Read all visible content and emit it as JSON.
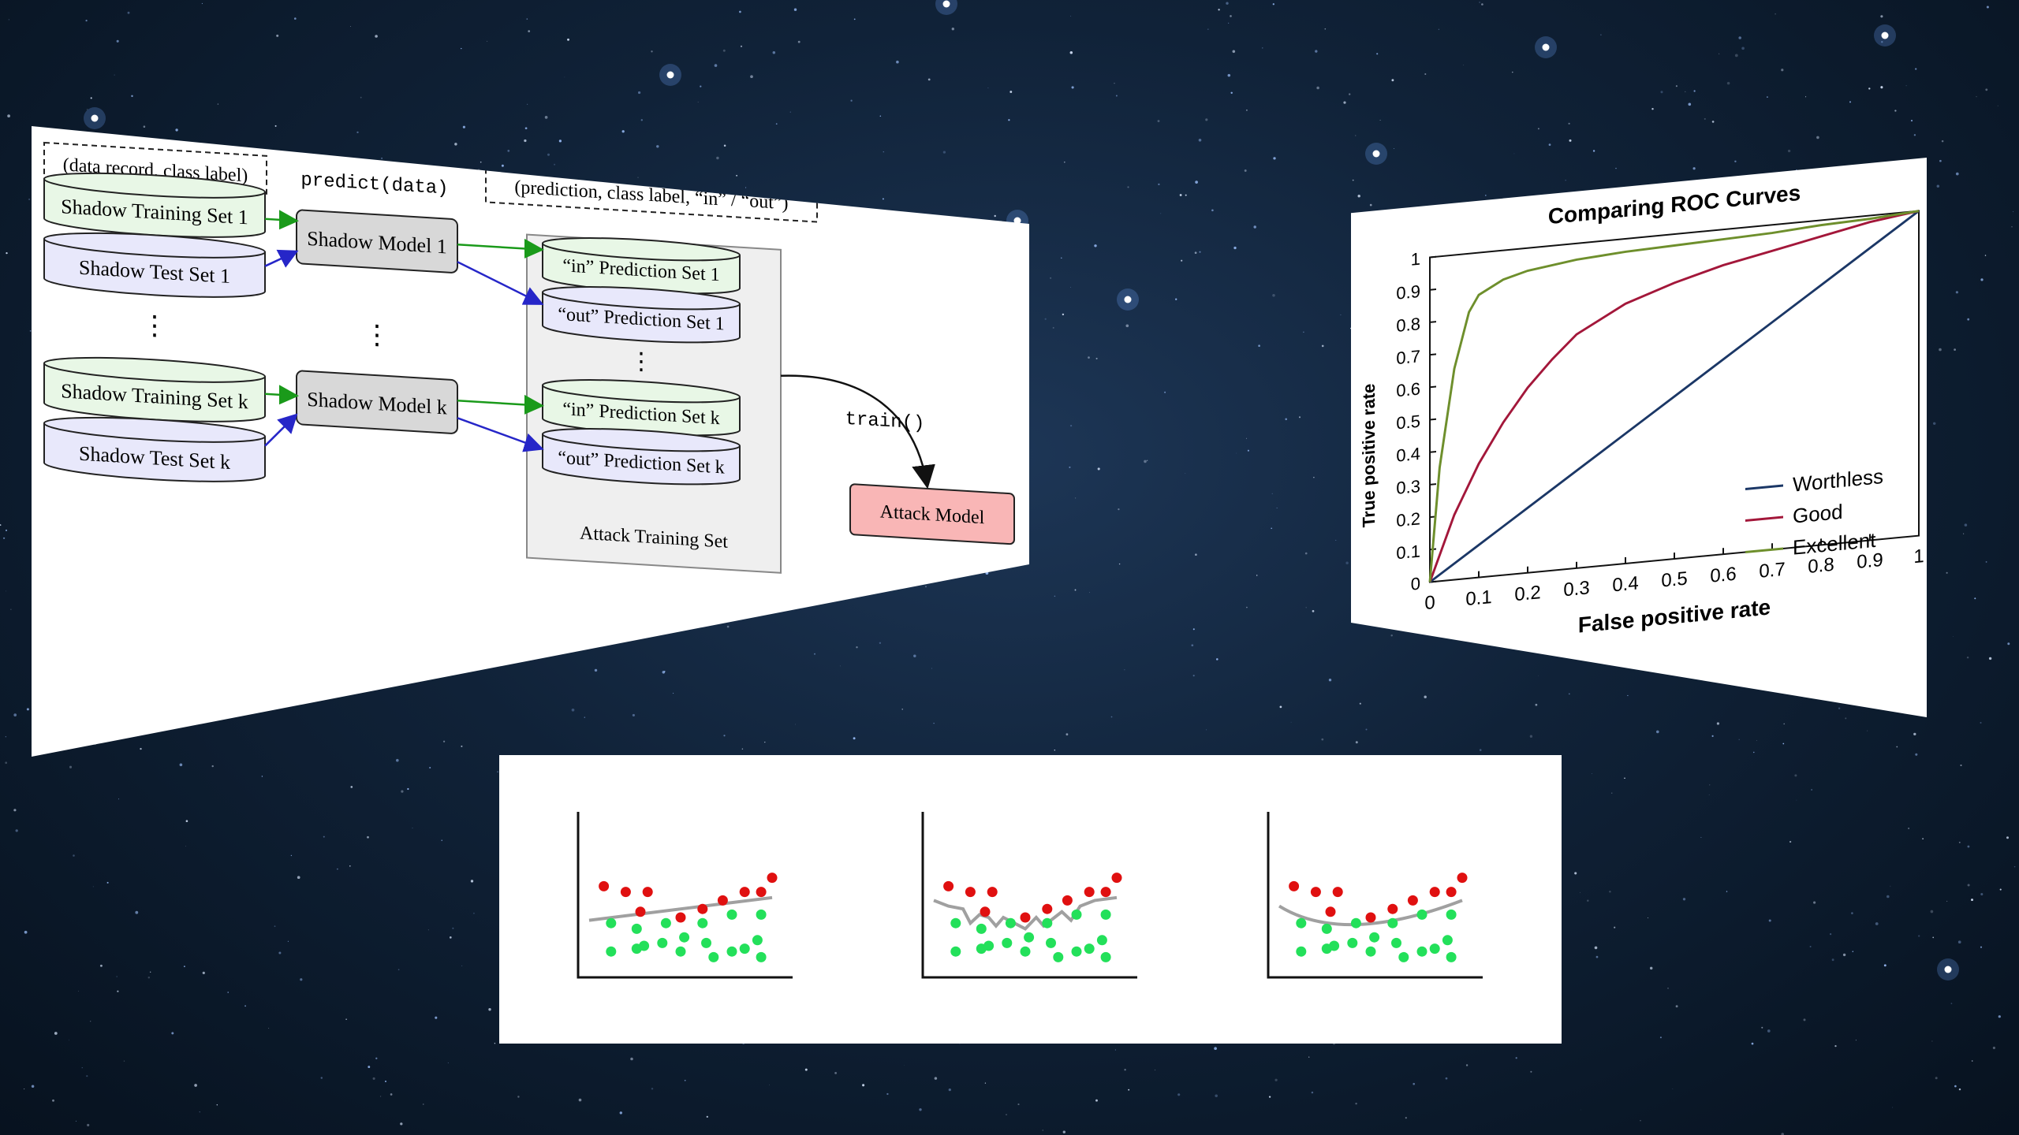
{
  "diagram": {
    "input_label": "(data record, class label)",
    "predict_label": "predict(data)",
    "output_label": "(prediction, class label, “in” / “out”)",
    "shadow_training_1": "Shadow Training Set 1",
    "shadow_test_1": "Shadow Test Set 1",
    "shadow_training_k": "Shadow Training Set k",
    "shadow_test_k": "Shadow Test Set k",
    "shadow_model_1": "Shadow Model 1",
    "shadow_model_k": "Shadow Model k",
    "in_pred_1": "“in” Prediction Set 1",
    "out_pred_1": "“out” Prediction Set 1",
    "in_pred_k": "“in” Prediction Set k",
    "out_pred_k": "“out” Prediction Set k",
    "attack_training_set": "Attack Training Set",
    "train_label": "train()",
    "attack_model": "Attack Model",
    "ellipsis": "⋮",
    "colors": {
      "green_fill": "#e8f7e6",
      "blue_fill": "#e8e8fb",
      "model_fill": "#d8d8d8",
      "attack_fill": "#f9b6b6",
      "green_arrow": "#1a9a1a",
      "blue_arrow": "#2626c8"
    }
  },
  "roc_chart": {
    "chart_data": {
      "type": "line",
      "title": "Comparing ROC Curves",
      "xlabel": "False positive rate",
      "ylabel": "True positive rate",
      "xlim": [
        0,
        1
      ],
      "ylim": [
        0,
        1
      ],
      "xticks": [
        "0",
        "0.1",
        "0.2",
        "0.3",
        "0.4",
        "0.5",
        "0.6",
        "0.7",
        "0.8",
        "0.9",
        "1"
      ],
      "yticks": [
        "0",
        "0.1",
        "0.2",
        "0.3",
        "0.4",
        "0.5",
        "0.6",
        "0.7",
        "0.8",
        "0.9",
        "1"
      ],
      "legend_position": "bottom-right",
      "series": [
        {
          "name": "Worthless",
          "color": "#1b3766",
          "x": [
            0,
            0.1,
            0.2,
            0.3,
            0.4,
            0.5,
            0.6,
            0.7,
            0.8,
            0.9,
            1.0
          ],
          "y": [
            0,
            0.1,
            0.2,
            0.3,
            0.4,
            0.5,
            0.6,
            0.7,
            0.8,
            0.9,
            1.0
          ]
        },
        {
          "name": "Good",
          "color": "#a3173a",
          "x": [
            0,
            0.05,
            0.1,
            0.15,
            0.2,
            0.25,
            0.3,
            0.4,
            0.5,
            0.6,
            0.7,
            0.8,
            0.9,
            1.0
          ],
          "y": [
            0,
            0.2,
            0.35,
            0.47,
            0.57,
            0.65,
            0.72,
            0.8,
            0.85,
            0.89,
            0.92,
            0.95,
            0.98,
            1.0
          ]
        },
        {
          "name": "Excellent",
          "color": "#6e8f2c",
          "x": [
            0,
            0.02,
            0.05,
            0.08,
            0.1,
            0.15,
            0.2,
            0.3,
            0.4,
            0.5,
            0.6,
            0.7,
            0.8,
            0.9,
            1.0
          ],
          "y": [
            0,
            0.35,
            0.65,
            0.82,
            0.87,
            0.91,
            0.93,
            0.95,
            0.96,
            0.965,
            0.97,
            0.975,
            0.985,
            0.99,
            1.0
          ]
        }
      ]
    }
  },
  "fit_panels": {
    "colors": {
      "red": "#e01010",
      "green": "#23e05a",
      "curve": "#a0a0a0"
    },
    "red_points": [
      [
        0.08,
        0.52
      ],
      [
        0.2,
        0.48
      ],
      [
        0.32,
        0.48
      ],
      [
        0.28,
        0.34
      ],
      [
        0.5,
        0.3
      ],
      [
        0.62,
        0.36
      ],
      [
        0.73,
        0.42
      ],
      [
        0.85,
        0.48
      ],
      [
        0.94,
        0.48
      ],
      [
        1.0,
        0.58
      ]
    ],
    "green_points": [
      [
        0.12,
        0.26
      ],
      [
        0.26,
        0.22
      ],
      [
        0.42,
        0.26
      ],
      [
        0.62,
        0.26
      ],
      [
        0.78,
        0.32
      ],
      [
        0.94,
        0.32
      ],
      [
        0.26,
        0.08
      ],
      [
        0.4,
        0.12
      ],
      [
        0.52,
        0.16
      ],
      [
        0.64,
        0.12
      ],
      [
        0.78,
        0.06
      ],
      [
        0.92,
        0.14
      ],
      [
        0.12,
        0.06
      ],
      [
        0.3,
        0.1
      ],
      [
        0.5,
        0.06
      ],
      [
        0.68,
        0.02
      ],
      [
        0.85,
        0.08
      ],
      [
        0.94,
        0.02
      ]
    ],
    "curves": [
      "underfit",
      "overfit",
      "good-fit"
    ]
  }
}
